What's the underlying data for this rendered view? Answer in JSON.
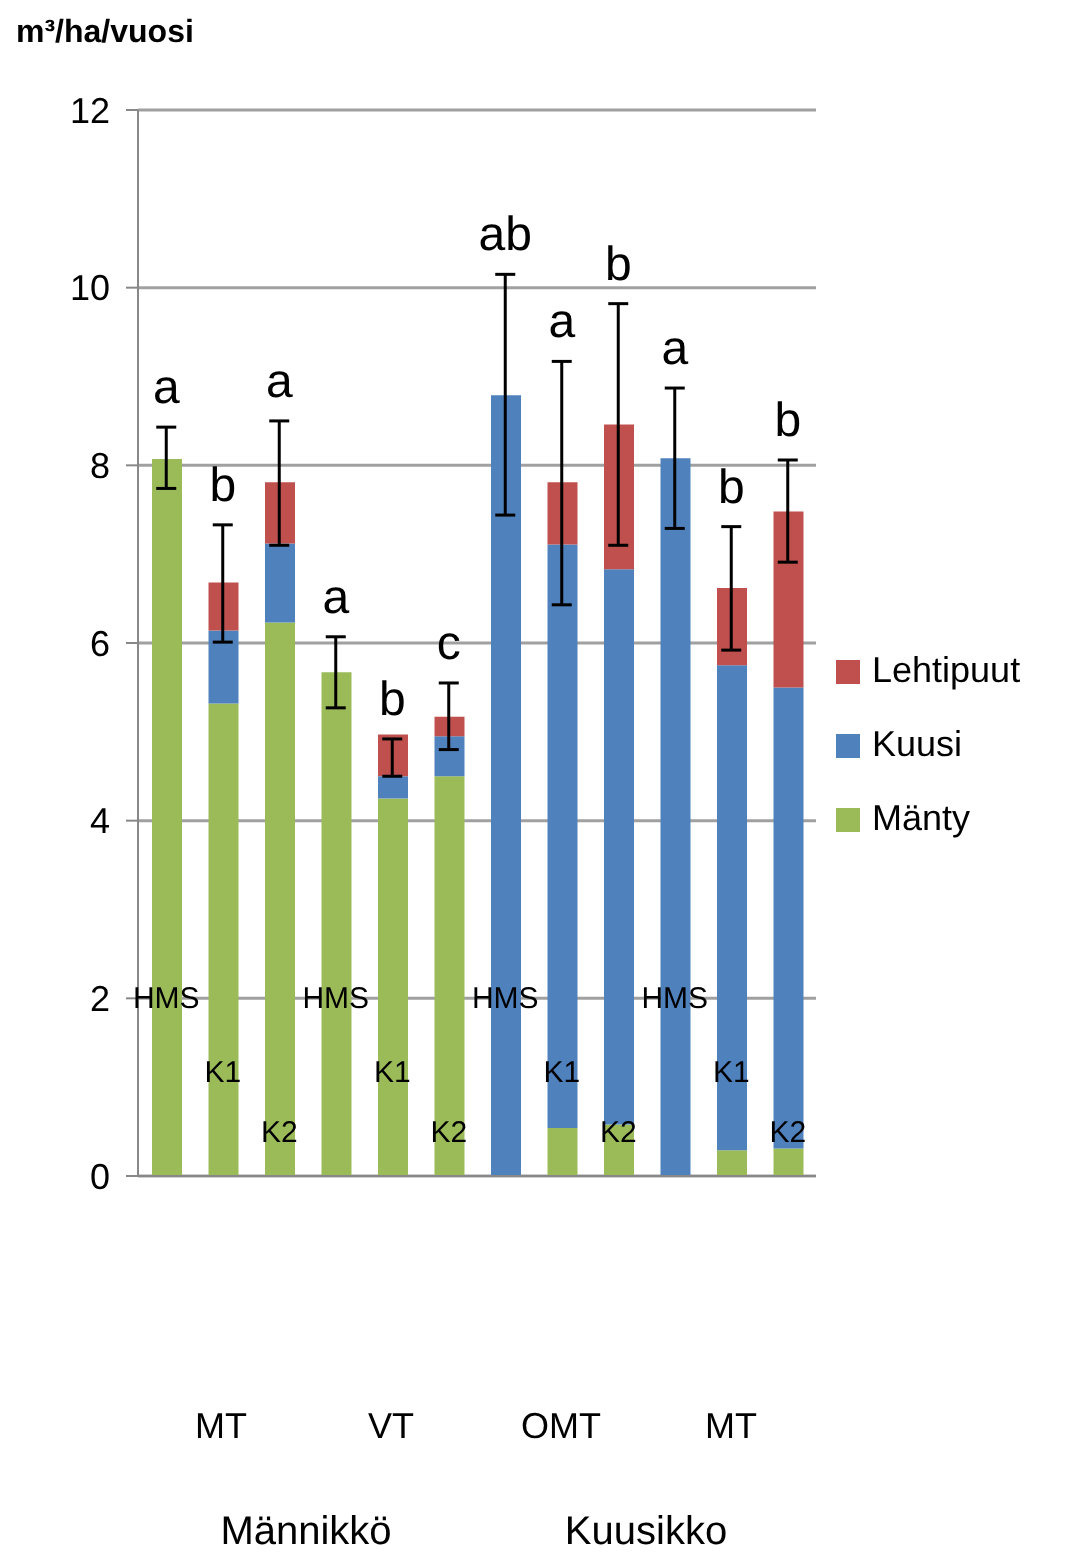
{
  "chart_data": {
    "type": "bar",
    "stacked": true,
    "ylabel": "m³/ha/vuosi",
    "categories": [
      "HMS",
      "K1",
      "K2",
      "HMS",
      "K1",
      "K2",
      "HMS",
      "K1",
      "K2",
      "HMS",
      "K1",
      "K2"
    ],
    "series": [
      {
        "name": "Mänty",
        "color": "#9bbb59",
        "values": [
          8.07,
          5.32,
          6.23,
          5.67,
          4.25,
          4.5,
          0,
          0.54,
          0.58,
          0,
          0.29,
          0.31
        ]
      },
      {
        "name": "Kuusi",
        "color": "#4f81bd",
        "values": [
          0,
          0.82,
          0.89,
          0,
          0.25,
          0.45,
          8.79,
          6.57,
          6.25,
          8.08,
          5.46,
          5.19
        ]
      },
      {
        "name": "Lehtipuut",
        "color": "#c0504d",
        "values": [
          0,
          0.54,
          0.69,
          0,
          0.47,
          0.22,
          0,
          0.7,
          1.63,
          0,
          0.87,
          1.98
        ],
        "errors": [
          [
            7.74,
            8.43
          ],
          [
            6.01,
            7.33
          ],
          [
            7.1,
            8.5
          ],
          [
            5.27,
            6.07
          ],
          [
            4.5,
            4.92
          ],
          [
            4.8,
            5.55
          ],
          [
            7.44,
            10.15
          ],
          [
            6.43,
            9.17
          ],
          [
            7.1,
            9.82
          ],
          [
            7.29,
            8.87
          ],
          [
            5.92,
            7.31
          ],
          [
            6.91,
            8.06
          ]
        ]
      }
    ],
    "annotations": [
      "a",
      "b",
      "a",
      "a",
      "b",
      "c",
      "ab",
      "a",
      "b",
      "a",
      "b",
      "b",
      "MT",
      "VT",
      "OMT",
      "MT",
      "Männikkö",
      "Kuusikko"
    ],
    "ylim": [
      0,
      12
    ],
    "yticks": [
      0,
      2,
      4,
      6,
      8,
      10,
      12
    ],
    "grid": "y",
    "legend": "right"
  }
}
